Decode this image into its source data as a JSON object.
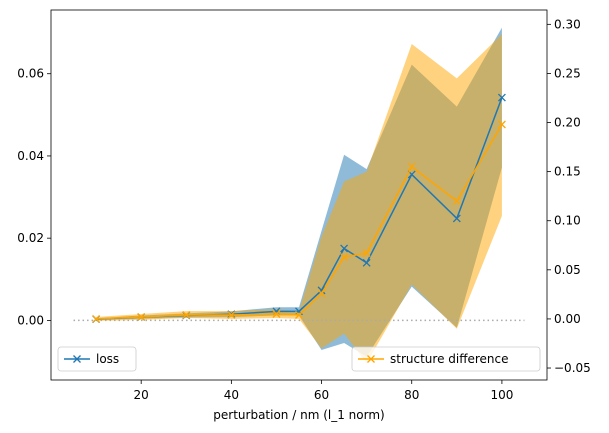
{
  "chart_data": {
    "type": "line",
    "xlabel": "perturbation / nm (l_1 norm)",
    "xlim": [
      0,
      110
    ],
    "x_ticks": [
      20,
      40,
      60,
      80,
      100
    ],
    "x": [
      10,
      20,
      30,
      40,
      50,
      55,
      60,
      65,
      70,
      80,
      90,
      100
    ],
    "zero_line": {
      "x_range": [
        5,
        105
      ],
      "y": 0,
      "style": "dotted",
      "color": "#aaaaaa"
    },
    "left_axis": {
      "ylim": [
        -0.0145,
        0.0755
      ],
      "ticks": [
        0.0,
        0.02,
        0.04,
        0.06
      ],
      "tick_labels": [
        "0.00",
        "0.02",
        "0.04",
        "0.06"
      ]
    },
    "right_axis": {
      "ylim": [
        -0.0622,
        0.3146
      ],
      "ticks": [
        -0.05,
        0.0,
        0.05,
        0.1,
        0.15,
        0.2,
        0.25,
        0.3
      ],
      "tick_labels": [
        "−0.05",
        "0.00",
        "0.05",
        "0.10",
        "0.15",
        "0.20",
        "0.25",
        "0.30"
      ]
    },
    "series": [
      {
        "name": "loss",
        "axis": "left",
        "color": "#1f77b4",
        "band_color": "#1f77b4",
        "marker": "x",
        "y": [
          0.0003,
          0.0008,
          0.0012,
          0.0015,
          0.0022,
          0.0022,
          0.0073,
          0.0175,
          0.014,
          0.0355,
          0.0248,
          0.0542
        ],
        "y_low": [
          0.0001,
          0.0004,
          0.0007,
          0.0008,
          0.0012,
          0.0012,
          -0.0072,
          -0.0055,
          -0.0088,
          0.0082,
          -0.0018,
          0.0372
        ],
        "y_high": [
          0.0005,
          0.0012,
          0.0017,
          0.0022,
          0.0032,
          0.0032,
          0.0218,
          0.0403,
          0.0368,
          0.0622,
          0.052,
          0.0712
        ]
      },
      {
        "name": "structure difference",
        "axis": "right",
        "color": "#ffa500",
        "band_color": "#ffa500",
        "marker": "x",
        "y": [
          0.0,
          0.002,
          0.004,
          0.004,
          0.005,
          0.004,
          0.026,
          0.063,
          0.067,
          0.155,
          0.12,
          0.198
        ],
        "y_low": [
          -0.002,
          -0.001,
          0.001,
          0.0,
          0.001,
          0.0,
          -0.03,
          -0.015,
          -0.045,
          0.035,
          -0.01,
          0.105
        ],
        "y_high": [
          0.002,
          0.005,
          0.008,
          0.008,
          0.01,
          0.008,
          0.084,
          0.14,
          0.15,
          0.28,
          0.245,
          0.29
        ]
      }
    ],
    "legends": [
      {
        "position": "lower-left",
        "series": "loss"
      },
      {
        "position": "lower-right",
        "series": "structure difference"
      }
    ],
    "grid": false
  }
}
